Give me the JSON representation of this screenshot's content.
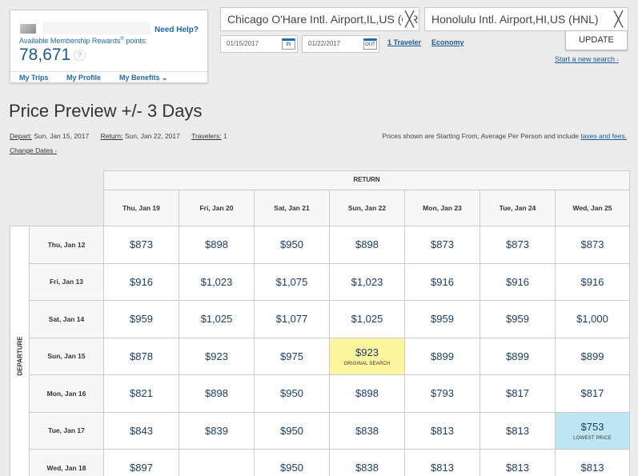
{
  "account": {
    "need_help": "Need Help?",
    "rewards_label": "Available Membership Rewards",
    "rewards_mark": "®",
    "rewards_suffix": " points:",
    "points": "78,671",
    "help_glyph": "?",
    "links": [
      "My Trips",
      "My Profile",
      "My Benefits"
    ],
    "benefits_chevron": "⌄"
  },
  "search": {
    "origin": "Chicago O'Hare Intl. Airport,IL,US (ORD)",
    "destination": "Honolulu Intl. Airport,HI,US (HNL)",
    "clear_glyph": "╳",
    "depart_date": "01/15/2017",
    "depart_tag": "IN",
    "return_date": "01/22/2017",
    "return_tag": "OUT",
    "travelers": "1 Traveler",
    "cabin": "Economy",
    "update_label": "UPDATE",
    "new_search": "Start a new search",
    "chevron": "›"
  },
  "page": {
    "title": "Price Preview +/- 3 Days",
    "depart_key": "Depart:",
    "depart_value": " Sun, Jan 15, 2017",
    "return_key": "Return:",
    "return_value": " Sun, Jan 22, 2017",
    "travelers_key": "Travelers:",
    "travelers_value": " 1",
    "prices_note": "Prices shown are Starting From, Average Per Person and include ",
    "prices_link": "taxes and fees.",
    "change_dates": "Change Dates",
    "chevron": "›"
  },
  "grid": {
    "return_label": "RETURN",
    "departure_label": "DEPARTURE",
    "return_dates": [
      "Thu, Jan 19",
      "Fri, Jan 20",
      "Sat, Jan 21",
      "Sun, Jan 22",
      "Mon, Jan 23",
      "Tue, Jan 24",
      "Wed, Jan 25"
    ],
    "rows": [
      {
        "depart": "Thu, Jan 12",
        "prices": [
          "$873",
          "$898",
          "$950",
          "$898",
          "$873",
          "$873",
          "$873"
        ]
      },
      {
        "depart": "Fri, Jan 13",
        "prices": [
          "$916",
          "$1,023",
          "$1,075",
          "$1,023",
          "$916",
          "$916",
          "$916"
        ]
      },
      {
        "depart": "Sat, Jan 14",
        "prices": [
          "$959",
          "$1,025",
          "$1,077",
          "$1,025",
          "$959",
          "$959",
          "$1,000"
        ]
      },
      {
        "depart": "Sun, Jan 15",
        "prices": [
          "$878",
          "$923",
          "$975",
          "$923",
          "$899",
          "$899",
          "$899"
        ]
      },
      {
        "depart": "Mon, Jan 16",
        "prices": [
          "$821",
          "$898",
          "$950",
          "$898",
          "$793",
          "$817",
          "$817"
        ]
      },
      {
        "depart": "Tue, Jan 17",
        "prices": [
          "$843",
          "$839",
          "$950",
          "$838",
          "$813",
          "$813",
          "$753"
        ]
      },
      {
        "depart": "Wed, Jan 18",
        "prices": [
          "$897",
          "",
          "$950",
          "$838",
          "$813",
          "$813",
          "$813"
        ]
      }
    ],
    "original_search": {
      "row": 3,
      "col": 3,
      "label": "ORIGINAL SEARCH",
      "color": "#fbf59d"
    },
    "lowest_price": {
      "row": 5,
      "col": 6,
      "label": "LOWEST PRICE",
      "color": "#bde6f2"
    }
  },
  "colors": {
    "link": "#1a6ab0",
    "price": "#1a3d6e",
    "background": "#ececec"
  }
}
